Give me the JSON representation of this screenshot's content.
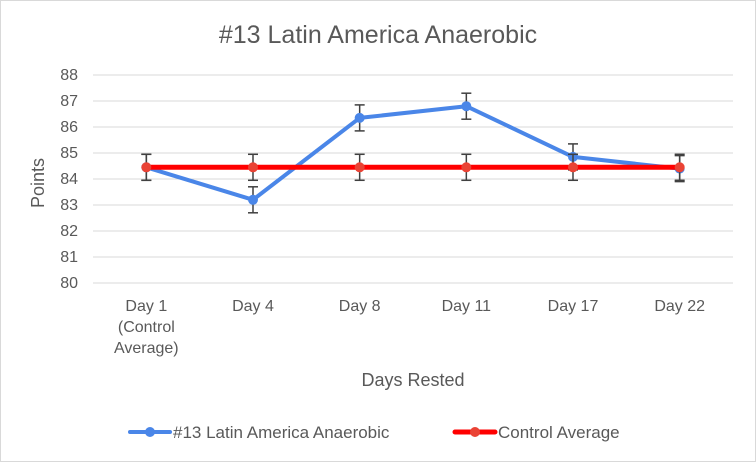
{
  "chart_data": {
    "type": "line",
    "title": "#13 Latin America Anaerobic",
    "xlabel": "Days Rested",
    "ylabel": "Points",
    "ylim": [
      80,
      88
    ],
    "y_ticks": [
      80,
      81,
      82,
      83,
      84,
      85,
      86,
      87,
      88
    ],
    "categories": [
      [
        "Day 1",
        "(Control",
        "Average)"
      ],
      [
        "Day 4"
      ],
      [
        "Day 8"
      ],
      [
        "Day 11"
      ],
      [
        "Day 17"
      ],
      [
        "Day 22"
      ]
    ],
    "grid": true,
    "legend_position": "bottom",
    "series": [
      {
        "name": "#13 Latin America Anaerobic",
        "color": "#4a86e8",
        "values": [
          84.45,
          83.2,
          86.35,
          86.8,
          84.85,
          84.4
        ],
        "error": [
          0.5,
          0.5,
          0.5,
          0.5,
          0.5,
          0.5
        ]
      },
      {
        "name": "Control Average",
        "color": "#ff0000",
        "marker_color": "#ea4335",
        "values": [
          84.45,
          84.45,
          84.45,
          84.45,
          84.45,
          84.45
        ],
        "error": [
          0.5,
          0.5,
          0.5,
          0.5,
          0.5,
          0.5
        ]
      }
    ]
  }
}
